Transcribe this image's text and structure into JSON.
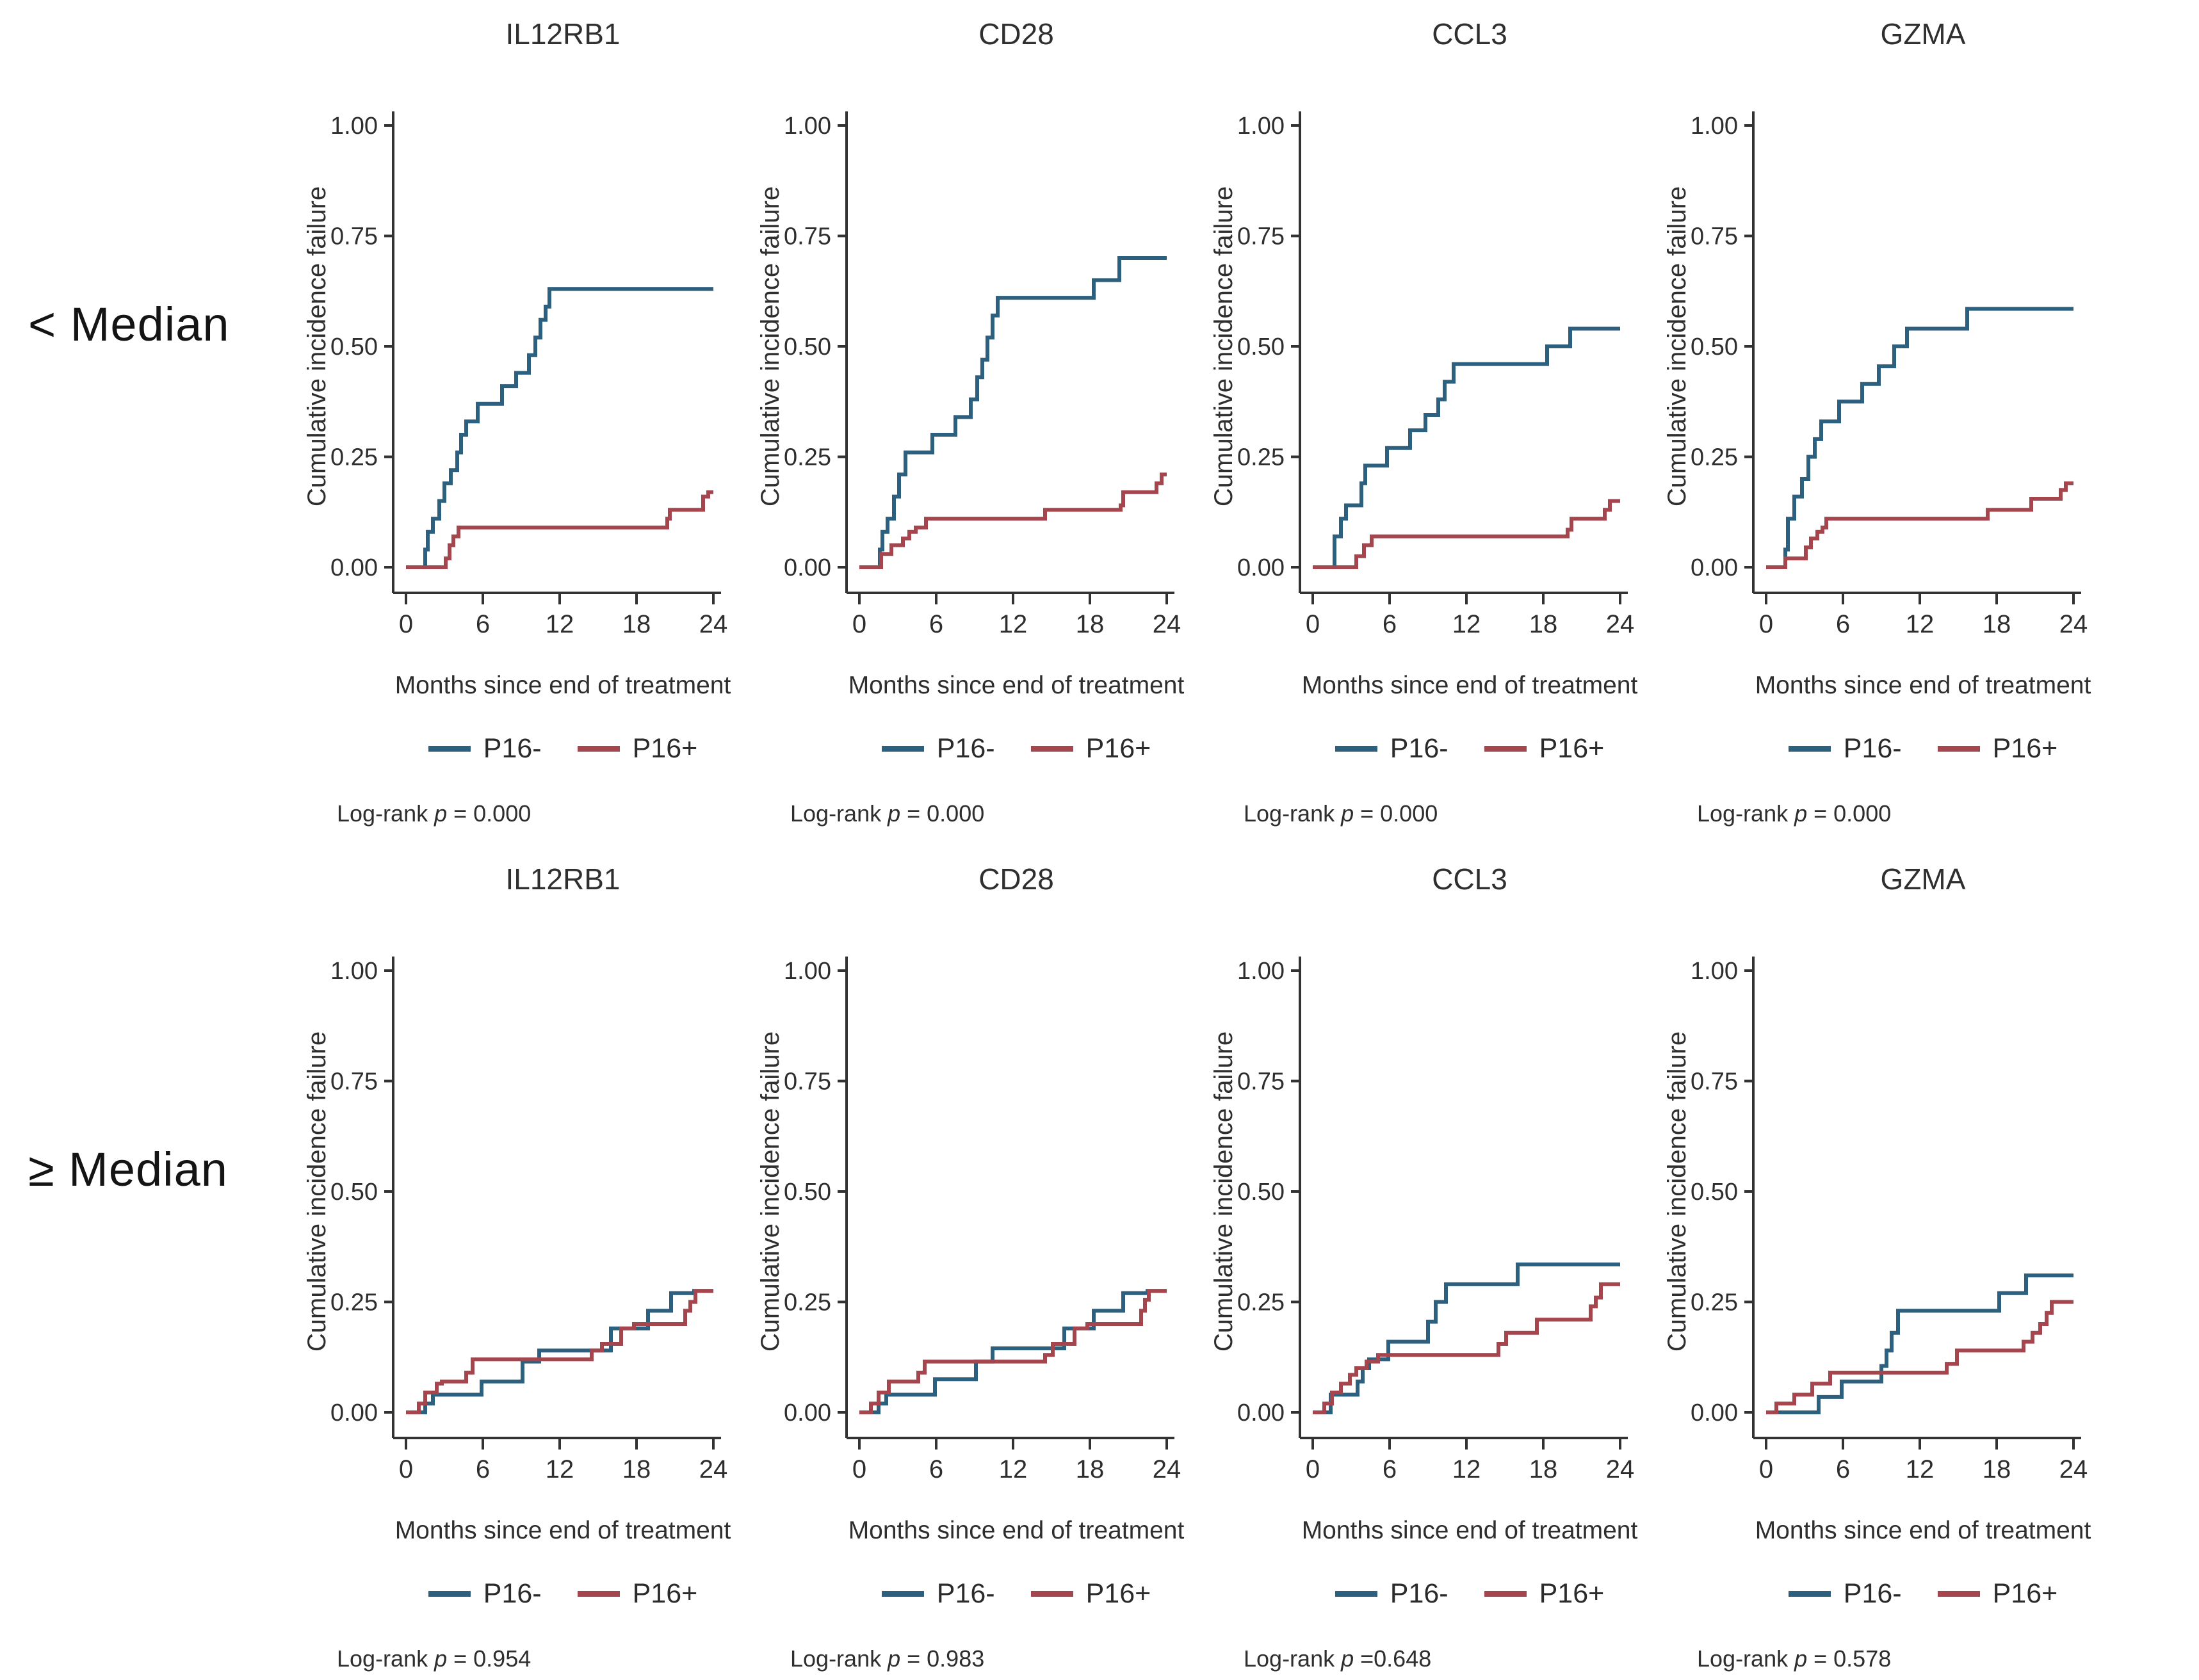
{
  "rows": [
    {
      "label": "< Median"
    },
    {
      "label": "≥ Median"
    }
  ],
  "legend": {
    "neg_label": "P16-",
    "pos_label": "P16+"
  },
  "logrank_prefix": "Log-rank",
  "p_symbol": "p",
  "colors": {
    "p16neg": "#2d5f7e",
    "p16pos": "#a5454d",
    "axis": "#333333",
    "text": "#2e2e2e",
    "background": "#ffffff"
  },
  "chart_data": [
    {
      "type": "line",
      "subtype": "step-cumulative-incidence",
      "row_label": "< Median",
      "title": "IL12RB1",
      "xlabel": "Months since end of treatment",
      "ylabel": "Cumulative incidence failure",
      "xlim": [
        0,
        24
      ],
      "ylim": [
        0,
        1
      ],
      "xticks": [
        0,
        6,
        12,
        18,
        24
      ],
      "yticks": [
        "0.00",
        "0.25",
        "0.50",
        "0.75",
        "1.00"
      ],
      "grid": false,
      "legend_position": "bottom",
      "p_text": "= 0.000",
      "series": [
        {
          "name": "P16-",
          "color_key": "p16neg",
          "step_points": [
            [
              1.5,
              0.04
            ],
            [
              1.7,
              0.08
            ],
            [
              2.1,
              0.11
            ],
            [
              2.6,
              0.15
            ],
            [
              3.0,
              0.19
            ],
            [
              3.5,
              0.22
            ],
            [
              4.0,
              0.26
            ],
            [
              4.3,
              0.3
            ],
            [
              4.7,
              0.33
            ],
            [
              5.6,
              0.37
            ],
            [
              7.5,
              0.41
            ],
            [
              8.6,
              0.44
            ],
            [
              9.6,
              0.48
            ],
            [
              10.1,
              0.52
            ],
            [
              10.5,
              0.56
            ],
            [
              10.9,
              0.59
            ],
            [
              11.2,
              0.63
            ]
          ]
        },
        {
          "name": "P16+",
          "color_key": "p16pos",
          "step_points": [
            [
              3.1,
              0.02
            ],
            [
              3.4,
              0.05
            ],
            [
              3.7,
              0.07
            ],
            [
              4.1,
              0.09
            ],
            [
              20.4,
              0.11
            ],
            [
              20.6,
              0.13
            ],
            [
              23.2,
              0.16
            ],
            [
              23.6,
              0.17
            ]
          ]
        }
      ]
    },
    {
      "type": "line",
      "subtype": "step-cumulative-incidence",
      "row_label": "< Median",
      "title": "CD28",
      "xlabel": "Months since end of treatment",
      "ylabel": "Cumulative incidence failure",
      "xlim": [
        0,
        24
      ],
      "ylim": [
        0,
        1
      ],
      "xticks": [
        0,
        6,
        12,
        18,
        24
      ],
      "yticks": [
        "0.00",
        "0.25",
        "0.50",
        "0.75",
        "1.00"
      ],
      "grid": false,
      "legend_position": "bottom",
      "p_text": "= 0.000",
      "series": [
        {
          "name": "P16-",
          "color_key": "p16neg",
          "step_points": [
            [
              1.6,
              0.04
            ],
            [
              1.8,
              0.08
            ],
            [
              2.2,
              0.11
            ],
            [
              2.7,
              0.16
            ],
            [
              3.1,
              0.21
            ],
            [
              3.6,
              0.26
            ],
            [
              5.7,
              0.3
            ],
            [
              7.5,
              0.34
            ],
            [
              8.7,
              0.38
            ],
            [
              9.2,
              0.43
            ],
            [
              9.6,
              0.47
            ],
            [
              10.0,
              0.52
            ],
            [
              10.4,
              0.57
            ],
            [
              10.8,
              0.61
            ],
            [
              18.3,
              0.65
            ],
            [
              20.3,
              0.7
            ]
          ]
        },
        {
          "name": "P16+",
          "color_key": "p16pos",
          "step_points": [
            [
              1.7,
              0.03
            ],
            [
              2.5,
              0.05
            ],
            [
              3.4,
              0.065
            ],
            [
              3.9,
              0.08
            ],
            [
              4.4,
              0.09
            ],
            [
              5.2,
              0.11
            ],
            [
              14.5,
              0.13
            ],
            [
              20.4,
              0.14
            ],
            [
              20.6,
              0.17
            ],
            [
              23.2,
              0.19
            ],
            [
              23.6,
              0.21
            ]
          ]
        }
      ]
    },
    {
      "type": "line",
      "subtype": "step-cumulative-incidence",
      "row_label": "< Median",
      "title": "CCL3",
      "xlabel": "Months since end of treatment",
      "ylabel": "Cumulative incidence failure",
      "xlim": [
        0,
        24
      ],
      "ylim": [
        0,
        1
      ],
      "xticks": [
        0,
        6,
        12,
        18,
        24
      ],
      "yticks": [
        "0.00",
        "0.25",
        "0.50",
        "0.75",
        "1.00"
      ],
      "grid": false,
      "legend_position": "bottom",
      "p_text": "= 0.000",
      "series": [
        {
          "name": "P16-",
          "color_key": "p16neg",
          "step_points": [
            [
              1.7,
              0.07
            ],
            [
              2.2,
              0.11
            ],
            [
              2.6,
              0.14
            ],
            [
              3.8,
              0.19
            ],
            [
              4.1,
              0.23
            ],
            [
              5.8,
              0.27
            ],
            [
              7.6,
              0.31
            ],
            [
              8.8,
              0.345
            ],
            [
              9.8,
              0.38
            ],
            [
              10.3,
              0.42
            ],
            [
              11.0,
              0.46
            ],
            [
              18.3,
              0.5
            ],
            [
              20.1,
              0.54
            ]
          ]
        },
        {
          "name": "P16+",
          "color_key": "p16pos",
          "step_points": [
            [
              3.4,
              0.025
            ],
            [
              4.0,
              0.05
            ],
            [
              4.6,
              0.07
            ],
            [
              19.9,
              0.085
            ],
            [
              20.2,
              0.11
            ],
            [
              22.8,
              0.13
            ],
            [
              23.2,
              0.15
            ]
          ]
        }
      ]
    },
    {
      "type": "line",
      "subtype": "step-cumulative-incidence",
      "row_label": "< Median",
      "title": "GZMA",
      "xlabel": "Months since end of treatment",
      "ylabel": "Cumulative incidence failure",
      "xlim": [
        0,
        24
      ],
      "ylim": [
        0,
        1
      ],
      "xticks": [
        0,
        6,
        12,
        18,
        24
      ],
      "yticks": [
        "0.00",
        "0.25",
        "0.50",
        "0.75",
        "1.00"
      ],
      "grid": false,
      "legend_position": "bottom",
      "p_text": "= 0.000",
      "series": [
        {
          "name": "P16-",
          "color_key": "p16neg",
          "step_points": [
            [
              1.5,
              0.04
            ],
            [
              1.7,
              0.11
            ],
            [
              2.2,
              0.16
            ],
            [
              2.8,
              0.2
            ],
            [
              3.3,
              0.25
            ],
            [
              3.8,
              0.29
            ],
            [
              4.3,
              0.33
            ],
            [
              5.7,
              0.375
            ],
            [
              7.5,
              0.415
            ],
            [
              8.8,
              0.455
            ],
            [
              10.0,
              0.5
            ],
            [
              11.0,
              0.54
            ],
            [
              15.7,
              0.585
            ]
          ]
        },
        {
          "name": "P16+",
          "color_key": "p16pos",
          "step_points": [
            [
              1.5,
              0.02
            ],
            [
              3.1,
              0.045
            ],
            [
              3.5,
              0.065
            ],
            [
              4.0,
              0.08
            ],
            [
              4.4,
              0.09
            ],
            [
              4.7,
              0.11
            ],
            [
              17.3,
              0.13
            ],
            [
              20.7,
              0.155
            ],
            [
              23.0,
              0.175
            ],
            [
              23.4,
              0.19
            ]
          ]
        }
      ]
    },
    {
      "type": "line",
      "subtype": "step-cumulative-incidence",
      "row_label": "≥ Median",
      "title": "IL12RB1",
      "xlabel": "Months since end of treatment",
      "ylabel": "Cumulative incidence failure",
      "xlim": [
        0,
        24
      ],
      "ylim": [
        0,
        1
      ],
      "xticks": [
        0,
        6,
        12,
        18,
        24
      ],
      "yticks": [
        "0.00",
        "0.25",
        "0.50",
        "0.75",
        "1.00"
      ],
      "grid": false,
      "legend_position": "bottom",
      "p_text": "= 0.954",
      "series": [
        {
          "name": "P16-",
          "color_key": "p16neg",
          "step_points": [
            [
              1.5,
              0.02
            ],
            [
              2.1,
              0.04
            ],
            [
              5.9,
              0.07
            ],
            [
              9.1,
              0.115
            ],
            [
              10.4,
              0.14
            ],
            [
              16.0,
              0.19
            ],
            [
              18.9,
              0.23
            ],
            [
              20.7,
              0.27
            ],
            [
              22.5,
              0.275
            ]
          ]
        },
        {
          "name": "P16+",
          "color_key": "p16pos",
          "step_points": [
            [
              1.0,
              0.02
            ],
            [
              1.5,
              0.045
            ],
            [
              2.4,
              0.065
            ],
            [
              2.8,
              0.07
            ],
            [
              4.7,
              0.09
            ],
            [
              5.2,
              0.12
            ],
            [
              14.5,
              0.14
            ],
            [
              15.3,
              0.155
            ],
            [
              16.8,
              0.19
            ],
            [
              17.8,
              0.2
            ],
            [
              21.8,
              0.23
            ],
            [
              22.2,
              0.25
            ],
            [
              22.6,
              0.275
            ]
          ]
        }
      ]
    },
    {
      "type": "line",
      "subtype": "step-cumulative-incidence",
      "row_label": "≥ Median",
      "title": "CD28",
      "xlabel": "Months since end of treatment",
      "ylabel": "Cumulative incidence failure",
      "xlim": [
        0,
        24
      ],
      "ylim": [
        0,
        1
      ],
      "xticks": [
        0,
        6,
        12,
        18,
        24
      ],
      "yticks": [
        "0.00",
        "0.25",
        "0.50",
        "0.75",
        "1.00"
      ],
      "grid": false,
      "legend_position": "bottom",
      "p_text": "= 0.983",
      "series": [
        {
          "name": "P16-",
          "color_key": "p16neg",
          "step_points": [
            [
              1.5,
              0.02
            ],
            [
              2.1,
              0.04
            ],
            [
              5.9,
              0.075
            ],
            [
              9.1,
              0.115
            ],
            [
              10.4,
              0.145
            ],
            [
              16.0,
              0.19
            ],
            [
              18.3,
              0.23
            ],
            [
              20.6,
              0.27
            ],
            [
              22.5,
              0.275
            ]
          ]
        },
        {
          "name": "P16+",
          "color_key": "p16pos",
          "step_points": [
            [
              0.9,
              0.02
            ],
            [
              1.5,
              0.045
            ],
            [
              2.3,
              0.07
            ],
            [
              4.6,
              0.09
            ],
            [
              5.1,
              0.115
            ],
            [
              14.5,
              0.13
            ],
            [
              15.1,
              0.155
            ],
            [
              16.8,
              0.19
            ],
            [
              17.8,
              0.2
            ],
            [
              22.0,
              0.23
            ],
            [
              22.3,
              0.255
            ],
            [
              22.6,
              0.275
            ]
          ]
        }
      ]
    },
    {
      "type": "line",
      "subtype": "step-cumulative-incidence",
      "row_label": "≥ Median",
      "title": "CCL3",
      "xlabel": "Months since end of treatment",
      "ylabel": "Cumulative incidence failure",
      "xlim": [
        0,
        24
      ],
      "ylim": [
        0,
        1
      ],
      "xticks": [
        0,
        6,
        12,
        18,
        24
      ],
      "yticks": [
        "0.00",
        "0.25",
        "0.50",
        "0.75",
        "1.00"
      ],
      "grid": false,
      "legend_position": "bottom",
      "p_text": "=0.648",
      "series": [
        {
          "name": "P16-",
          "color_key": "p16neg",
          "step_points": [
            [
              1.4,
              0.04
            ],
            [
              3.5,
              0.07
            ],
            [
              3.9,
              0.1
            ],
            [
              4.4,
              0.12
            ],
            [
              5.9,
              0.16
            ],
            [
              9.0,
              0.205
            ],
            [
              9.6,
              0.25
            ],
            [
              10.4,
              0.29
            ],
            [
              16.0,
              0.335
            ]
          ]
        },
        {
          "name": "P16+",
          "color_key": "p16pos",
          "step_points": [
            [
              0.9,
              0.02
            ],
            [
              1.5,
              0.045
            ],
            [
              2.2,
              0.065
            ],
            [
              2.9,
              0.085
            ],
            [
              3.4,
              0.1
            ],
            [
              4.2,
              0.115
            ],
            [
              5.1,
              0.13
            ],
            [
              14.5,
              0.155
            ],
            [
              15.1,
              0.18
            ],
            [
              17.5,
              0.21
            ],
            [
              21.7,
              0.24
            ],
            [
              22.1,
              0.26
            ],
            [
              22.5,
              0.29
            ]
          ]
        }
      ]
    },
    {
      "type": "line",
      "subtype": "step-cumulative-incidence",
      "row_label": "≥ Median",
      "title": "GZMA",
      "xlabel": "Months since end of treatment",
      "ylabel": "Cumulative incidence failure",
      "xlim": [
        0,
        24
      ],
      "ylim": [
        0,
        1
      ],
      "xticks": [
        0,
        6,
        12,
        18,
        24
      ],
      "yticks": [
        "0.00",
        "0.25",
        "0.50",
        "0.75",
        "1.00"
      ],
      "grid": false,
      "legend_position": "bottom",
      "p_text": "= 0.578",
      "series": [
        {
          "name": "P16-",
          "color_key": "p16neg",
          "step_points": [
            [
              4.1,
              0.035
            ],
            [
              5.9,
              0.07
            ],
            [
              9.0,
              0.105
            ],
            [
              9.4,
              0.14
            ],
            [
              9.8,
              0.18
            ],
            [
              10.3,
              0.23
            ],
            [
              18.2,
              0.27
            ],
            [
              20.3,
              0.31
            ]
          ]
        },
        {
          "name": "P16+",
          "color_key": "p16pos",
          "step_points": [
            [
              0.8,
              0.02
            ],
            [
              2.2,
              0.04
            ],
            [
              3.6,
              0.065
            ],
            [
              5.0,
              0.09
            ],
            [
              14.1,
              0.11
            ],
            [
              14.9,
              0.14
            ],
            [
              20.1,
              0.16
            ],
            [
              20.8,
              0.18
            ],
            [
              21.4,
              0.2
            ],
            [
              21.9,
              0.225
            ],
            [
              22.3,
              0.25
            ]
          ]
        }
      ]
    }
  ]
}
